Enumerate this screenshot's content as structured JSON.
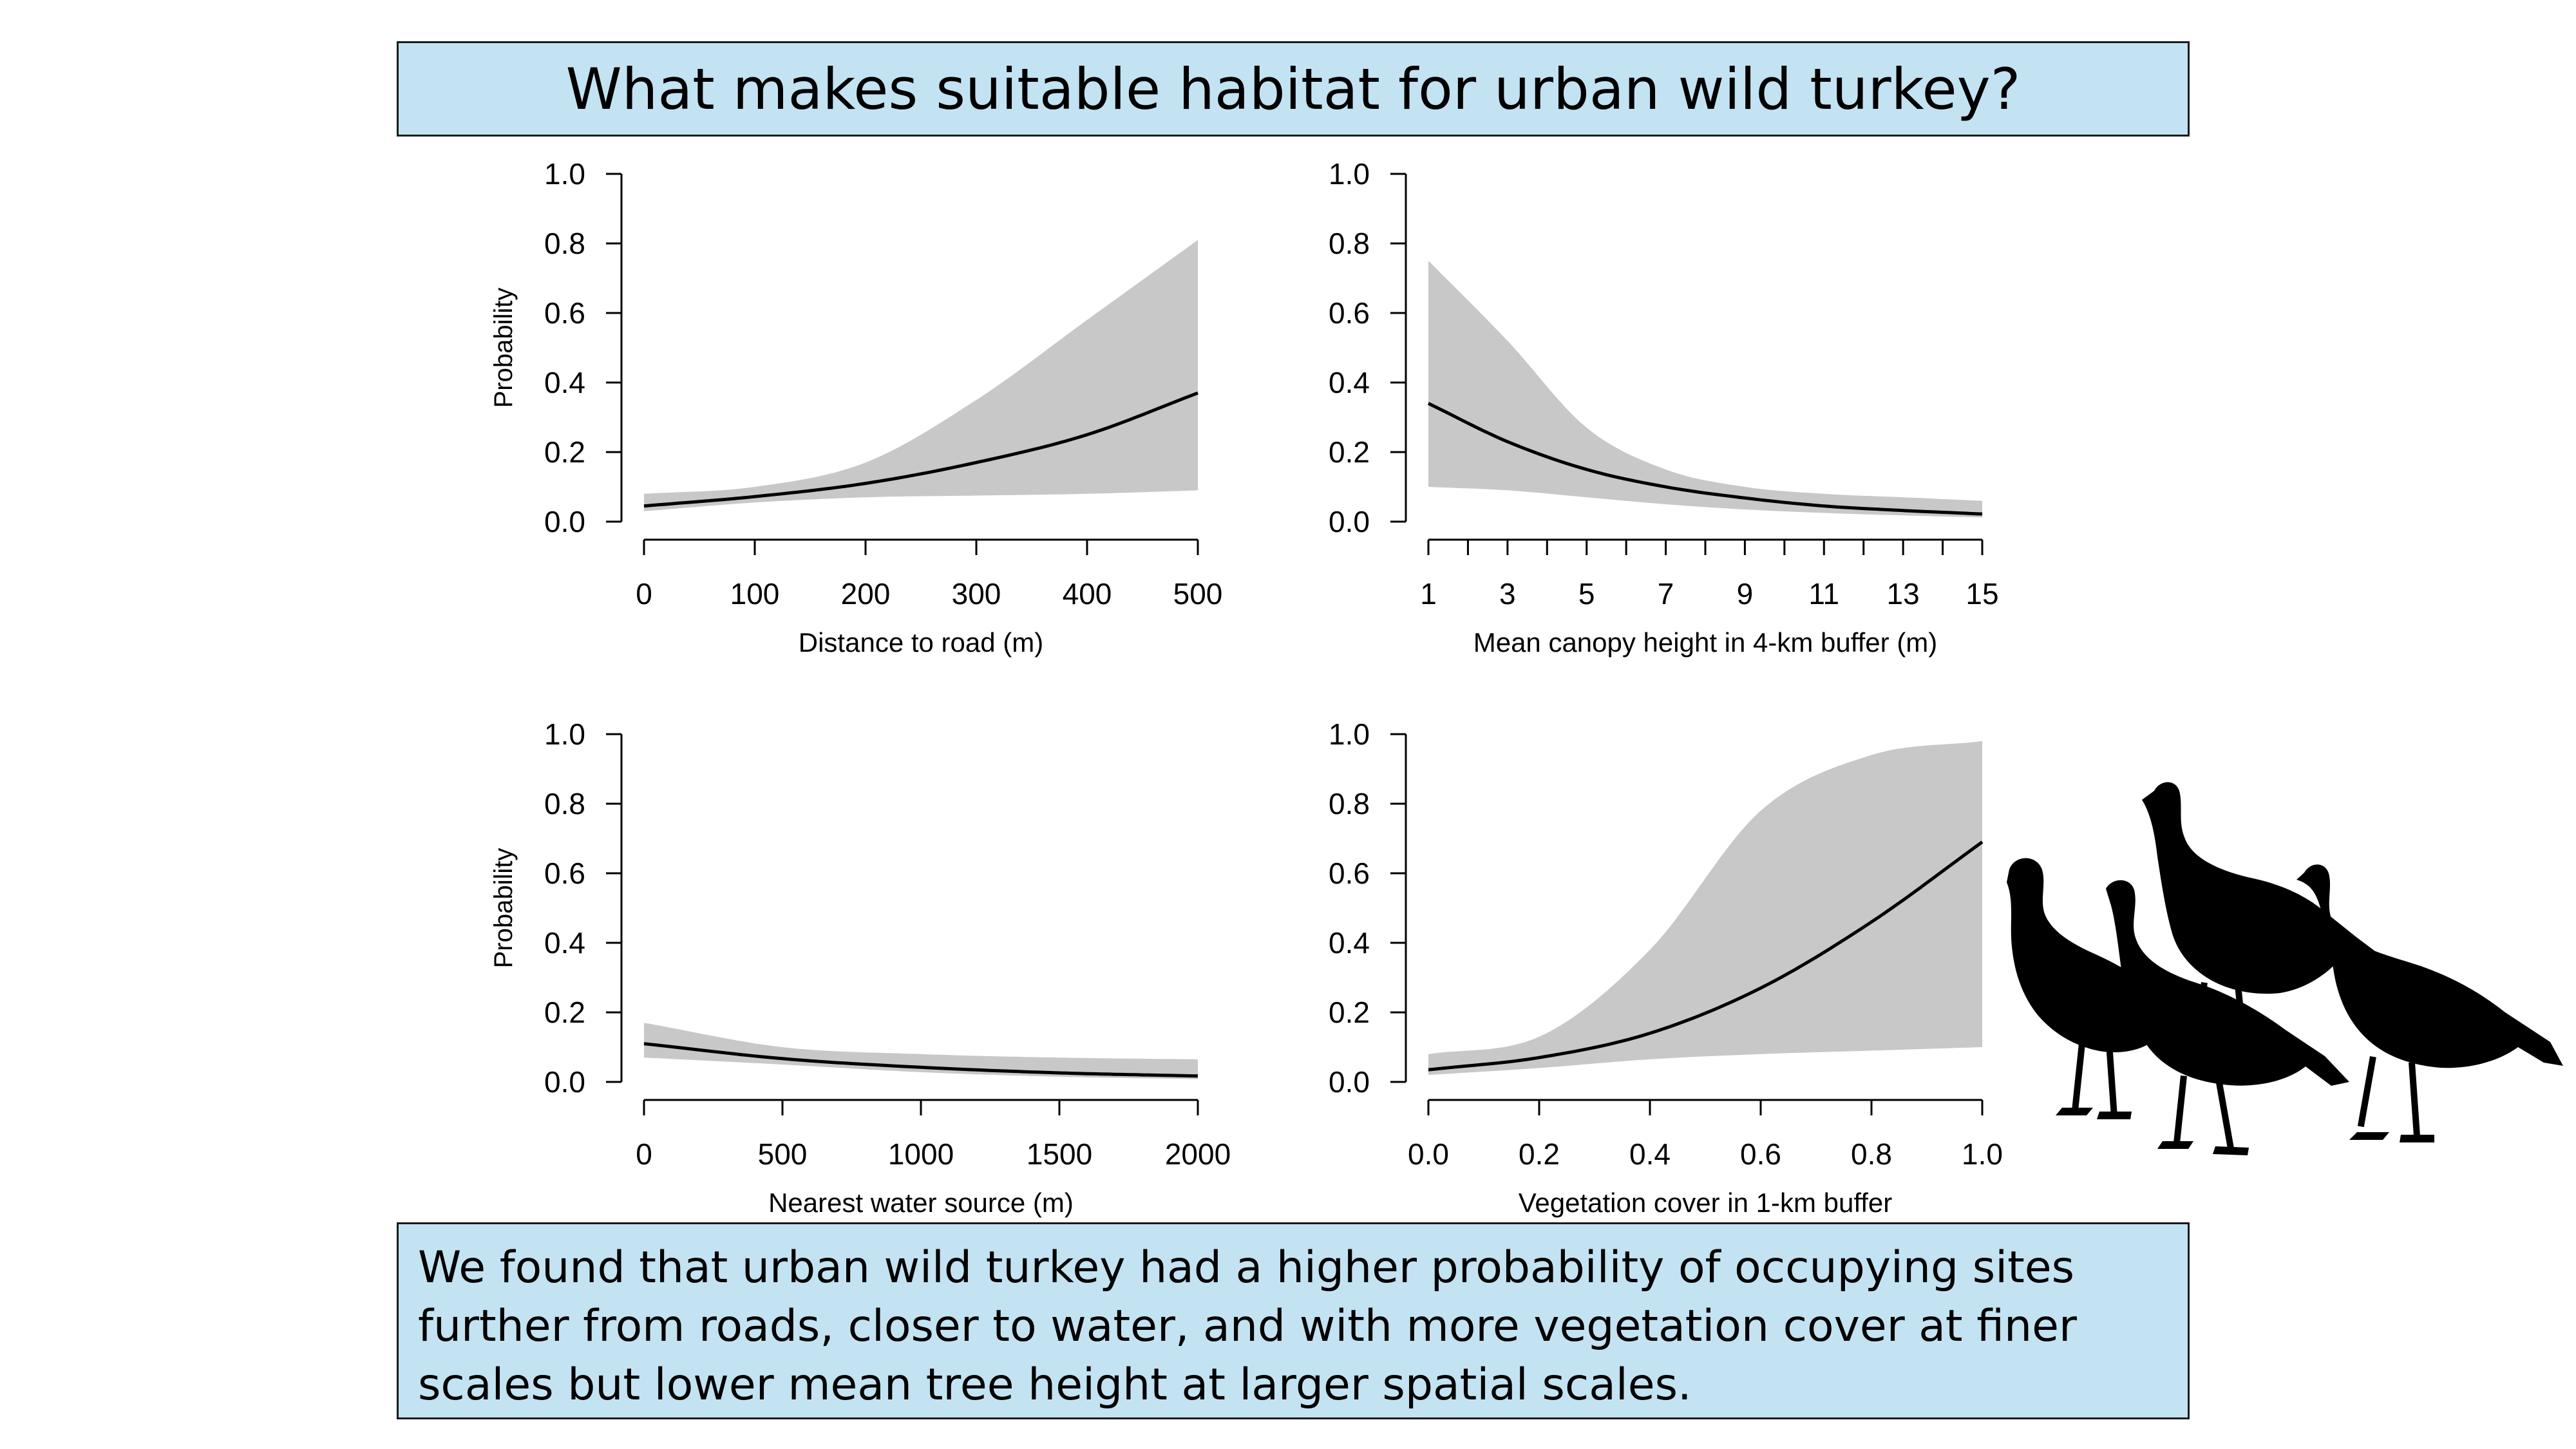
{
  "title": "What makes suitable habitat for urban wild turkey?",
  "summary": "We found that urban wild turkey had a higher probability of occupying sites further from roads, closer to water, and with more vegetation cover at finer scales but lower mean tree height at larger spatial scales.",
  "colors": {
    "panel_fill": "#c3e3f2",
    "ci_band": "#c8c8c8",
    "line": "#000000",
    "silhouette": "#000000"
  },
  "icons": [
    "turkey-silhouette"
  ],
  "chart_data": [
    {
      "type": "line",
      "xlabel": "Distance to road (m)",
      "ylabel": "Probability",
      "xlim": [
        0,
        500
      ],
      "ylim": [
        0,
        1
      ],
      "xticks": [
        0,
        100,
        200,
        300,
        400,
        500
      ],
      "xtick_labels": [
        "0",
        "100",
        "200",
        "300",
        "400",
        "500"
      ],
      "yticks": [
        0,
        0.2,
        0.4,
        0.6,
        0.8,
        1.0
      ],
      "ytick_labels": [
        "0.0",
        "0.2",
        "0.4",
        "0.6",
        "0.8",
        "1.0"
      ],
      "x": [
        0,
        100,
        200,
        300,
        400,
        500
      ],
      "series": [
        {
          "values": [
            0.045,
            0.072,
            0.11,
            0.17,
            0.25,
            0.37
          ]
        }
      ],
      "ci_lower": [
        0.03,
        0.055,
        0.07,
        0.075,
        0.08,
        0.09
      ],
      "ci_upper": [
        0.08,
        0.1,
        0.17,
        0.35,
        0.58,
        0.81
      ]
    },
    {
      "type": "line",
      "xlabel": "Mean canopy height in 4-km buffer (m)",
      "ylabel": "",
      "xlim": [
        1,
        15
      ],
      "ylim": [
        0,
        1
      ],
      "xticks": [
        1,
        3,
        5,
        7,
        9,
        11,
        13,
        15
      ],
      "xtick_labels": [
        "1",
        "3",
        "5",
        "7",
        "9",
        "11",
        "13",
        "15"
      ],
      "xminor_ticks": [
        2,
        4,
        6,
        8,
        10,
        12,
        14
      ],
      "yticks": [
        0,
        0.2,
        0.4,
        0.6,
        0.8,
        1.0
      ],
      "ytick_labels": [
        "0.0",
        "0.2",
        "0.4",
        "0.6",
        "0.8",
        "1.0"
      ],
      "x": [
        1,
        3,
        5,
        7,
        9,
        11,
        13,
        15
      ],
      "series": [
        {
          "values": [
            0.34,
            0.23,
            0.15,
            0.1,
            0.068,
            0.045,
            0.032,
            0.022
          ]
        }
      ],
      "ci_lower": [
        0.1,
        0.09,
        0.07,
        0.05,
        0.035,
        0.025,
        0.018,
        0.012
      ],
      "ci_upper": [
        0.75,
        0.52,
        0.27,
        0.15,
        0.1,
        0.08,
        0.07,
        0.06
      ]
    },
    {
      "type": "line",
      "xlabel": "Nearest water source (m)",
      "ylabel": "Probability",
      "xlim": [
        0,
        2000
      ],
      "ylim": [
        0,
        1
      ],
      "xticks": [
        0,
        500,
        1000,
        1500,
        2000
      ],
      "xtick_labels": [
        "0",
        "500",
        "1000",
        "1500",
        "2000"
      ],
      "yticks": [
        0,
        0.2,
        0.4,
        0.6,
        0.8,
        1.0
      ],
      "ytick_labels": [
        "0.0",
        "0.2",
        "0.4",
        "0.6",
        "0.8",
        "1.0"
      ],
      "x": [
        0,
        500,
        1000,
        1500,
        2000
      ],
      "series": [
        {
          "values": [
            0.11,
            0.067,
            0.042,
            0.026,
            0.017
          ]
        }
      ],
      "ci_lower": [
        0.07,
        0.05,
        0.028,
        0.015,
        0.008
      ],
      "ci_upper": [
        0.17,
        0.1,
        0.08,
        0.07,
        0.065
      ]
    },
    {
      "type": "line",
      "xlabel": "Vegetation cover in 1-km buffer",
      "ylabel": "",
      "xlim": [
        0,
        1
      ],
      "ylim": [
        0,
        1
      ],
      "xticks": [
        0,
        0.2,
        0.4,
        0.6,
        0.8,
        1.0
      ],
      "xtick_labels": [
        "0.0",
        "0.2",
        "0.4",
        "0.6",
        "0.8",
        "1.0"
      ],
      "yticks": [
        0,
        0.2,
        0.4,
        0.6,
        0.8,
        1.0
      ],
      "ytick_labels": [
        "0.0",
        "0.2",
        "0.4",
        "0.6",
        "0.8",
        "1.0"
      ],
      "x": [
        0,
        0.2,
        0.4,
        0.6,
        0.8,
        1.0
      ],
      "series": [
        {
          "values": [
            0.035,
            0.07,
            0.14,
            0.27,
            0.46,
            0.69
          ]
        }
      ],
      "ci_lower": [
        0.02,
        0.04,
        0.065,
        0.08,
        0.09,
        0.1
      ],
      "ci_upper": [
        0.08,
        0.13,
        0.38,
        0.78,
        0.94,
        0.98
      ]
    }
  ]
}
